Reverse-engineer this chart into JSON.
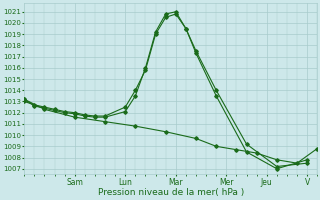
{
  "xlabel": "Pression niveau de la mer( hPa )",
  "bg_color": "#cde8ea",
  "grid_color": "#a8cccc",
  "line_color": "#1a6b1a",
  "ylim": [
    1006.5,
    1021.8
  ],
  "yticks": [
    1007,
    1008,
    1009,
    1010,
    1011,
    1012,
    1013,
    1014,
    1015,
    1016,
    1017,
    1018,
    1019,
    1020,
    1021
  ],
  "day_labels": [
    "Sam",
    "Lun",
    "Mar",
    "Mer",
    "Jeu",
    "V"
  ],
  "day_positions": [
    2.5,
    5.0,
    7.5,
    10.0,
    12.0,
    14.0
  ],
  "xlim": [
    0,
    14.5
  ],
  "xtick_minor_step": 0.5,
  "series": [
    {
      "x": [
        0,
        0.5,
        1.0,
        1.5,
        2.0,
        2.5,
        3.0,
        3.5,
        4.0,
        5.0,
        5.5,
        6.0,
        6.5,
        7.0,
        7.5,
        8.0,
        8.5,
        9.5,
        11.0,
        12.5,
        14.0
      ],
      "y": [
        1013.0,
        1012.7,
        1012.5,
        1012.3,
        1012.1,
        1012.0,
        1011.8,
        1011.7,
        1011.7,
        1012.5,
        1014.0,
        1015.8,
        1019.0,
        1020.5,
        1020.8,
        1019.5,
        1017.5,
        1014.0,
        1009.2,
        1007.2,
        1007.5
      ]
    },
    {
      "x": [
        0,
        0.5,
        1.0,
        1.5,
        2.0,
        2.5,
        3.0,
        3.5,
        4.0,
        5.0,
        5.5,
        6.0,
        6.5,
        7.0,
        7.5,
        8.0,
        8.5,
        9.5,
        11.0,
        12.5,
        14.0
      ],
      "y": [
        1013.2,
        1012.6,
        1012.4,
        1012.2,
        1012.0,
        1011.9,
        1011.7,
        1011.6,
        1011.6,
        1012.1,
        1013.5,
        1016.0,
        1019.2,
        1020.8,
        1021.0,
        1019.5,
        1017.3,
        1013.5,
        1008.5,
        1007.0,
        1007.8
      ]
    },
    {
      "x": [
        0,
        1.0,
        2.5,
        4.0,
        5.5,
        7.0,
        8.5,
        9.5,
        10.5,
        11.5,
        12.5,
        13.5,
        14.5
      ],
      "y": [
        1013.2,
        1012.3,
        1011.6,
        1011.2,
        1010.8,
        1010.3,
        1009.7,
        1009.0,
        1008.7,
        1008.4,
        1007.8,
        1007.5,
        1008.8
      ]
    }
  ]
}
